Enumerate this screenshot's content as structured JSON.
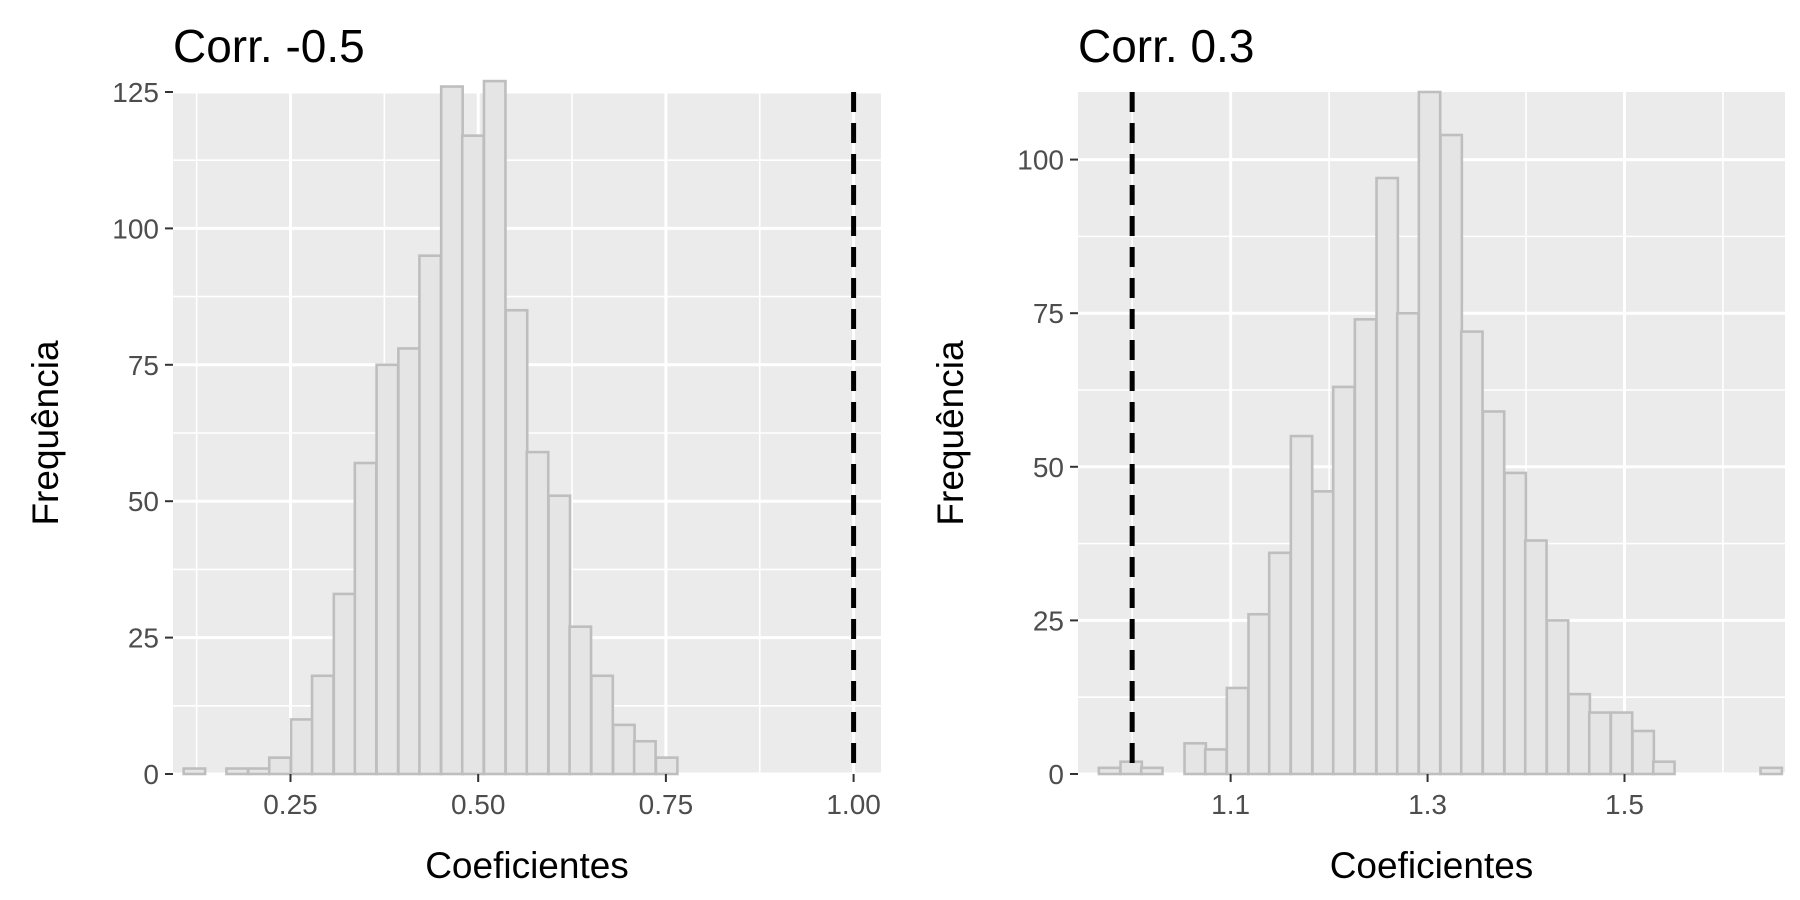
{
  "chart_data": [
    {
      "type": "histogram",
      "title": "Corr. -0.5",
      "xlabel": "Coeficientes",
      "ylabel": "Frequência",
      "xlim": [
        0.0935,
        1.0365
      ],
      "ylim": [
        0,
        125
      ],
      "xticks": [
        0.25,
        0.5,
        0.75,
        1.0
      ],
      "xtick_labels": [
        "0.25",
        "0.50",
        "0.75",
        "1.00"
      ],
      "yticks": [
        0,
        25,
        50,
        75,
        100,
        125
      ],
      "ytick_labels": [
        "0",
        "25",
        "50",
        "75",
        "100",
        "125"
      ],
      "bin_width": 0.0286,
      "bin_centers": [
        0.122,
        0.151,
        0.179,
        0.208,
        0.236,
        0.265,
        0.293,
        0.322,
        0.35,
        0.379,
        0.408,
        0.436,
        0.465,
        0.493,
        0.522,
        0.551,
        0.579,
        0.608,
        0.636,
        0.665,
        0.694,
        0.722,
        0.751,
        0.779,
        0.808,
        0.837,
        0.865,
        0.894,
        0.922,
        0.951,
        0.98,
        1.008
      ],
      "values": [
        1,
        0,
        1,
        1,
        3,
        10,
        18,
        33,
        57,
        75,
        78,
        95,
        126,
        117,
        127,
        85,
        59,
        51,
        27,
        18,
        9,
        6,
        3,
        0,
        0,
        0,
        0,
        0,
        0,
        0,
        0,
        0
      ],
      "reference_line": {
        "x": 1.0,
        "style": "dashed",
        "color": "#000000"
      },
      "grid": true
    },
    {
      "type": "histogram",
      "title": "Corr. 0.3",
      "xlabel": "Coeficientes",
      "ylabel": "Frequência",
      "xlim": [
        0.945,
        1.663
      ],
      "ylim": [
        0,
        111
      ],
      "xticks": [
        1.1,
        1.3,
        1.5
      ],
      "xtick_labels": [
        "1.1",
        "1.3",
        "1.5"
      ],
      "yticks": [
        0,
        25,
        50,
        75,
        100
      ],
      "ytick_labels": [
        "0",
        "25",
        "50",
        "75",
        "100"
      ],
      "bin_width": 0.02166,
      "bin_centers": [
        0.977,
        0.999,
        1.02,
        1.042,
        1.064,
        1.085,
        1.107,
        1.129,
        1.15,
        1.172,
        1.194,
        1.215,
        1.237,
        1.259,
        1.28,
        1.302,
        1.324,
        1.345,
        1.367,
        1.389,
        1.41,
        1.432,
        1.454,
        1.475,
        1.497,
        1.519,
        1.54,
        1.562,
        1.584,
        1.605,
        1.627,
        1.649
      ],
      "values": [
        1,
        2,
        1,
        0,
        5,
        4,
        14,
        26,
        36,
        55,
        46,
        63,
        74,
        97,
        75,
        111,
        104,
        72,
        59,
        49,
        38,
        25,
        13,
        10,
        10,
        7,
        2,
        0,
        0,
        0,
        0,
        1
      ],
      "reference_line": {
        "x": 1.0,
        "style": "dashed",
        "color": "#000000"
      },
      "grid": true
    }
  ],
  "colors": {
    "panel_background": "#ebebeb",
    "grid_line": "#ffffff",
    "bar_fill": "#e5e5e5",
    "bar_outline": "#bebebe",
    "reference_line": "#000000",
    "tick_text": "#4d4d4d"
  }
}
